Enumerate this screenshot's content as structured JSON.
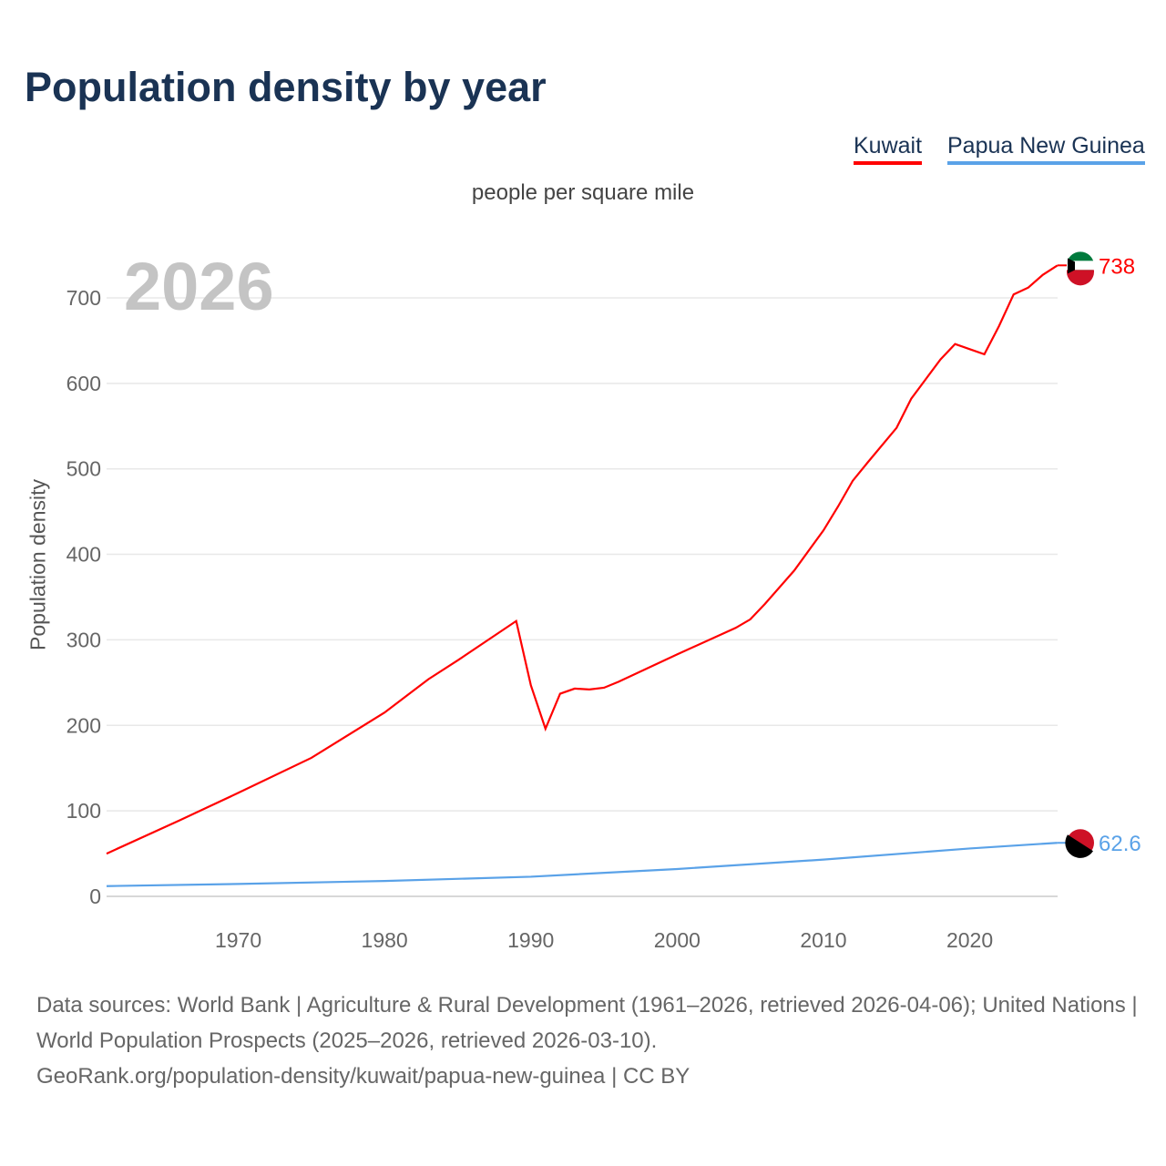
{
  "title": "Population density by year",
  "unit": "people per square mile",
  "year_label": "2026",
  "footer": {
    "line1": "Data sources: World Bank | Agriculture & Rural Development (1961–2026, retrieved 2026-04-06); United Nations | World Population Prospects (2025–2026, retrieved 2026-03-10).",
    "line2": "GeoRank.org/population-density/kuwait/papua-new-guinea | CC BY"
  },
  "chart_data": {
    "type": "line",
    "title": "Population density by year",
    "xlabel": "",
    "ylabel": "Population density",
    "xlim": [
      1961,
      2026
    ],
    "ylim": [
      0,
      750
    ],
    "xticks": [
      1970,
      1980,
      1990,
      2000,
      2010,
      2020
    ],
    "yticks": [
      0,
      100,
      200,
      300,
      400,
      500,
      600,
      700
    ],
    "legend": "top-right",
    "series": [
      {
        "name": "Kuwait",
        "color": "#ff0000",
        "end_label": "738",
        "x": [
          1961,
          1966,
          1970,
          1975,
          1980,
          1983,
          1985,
          1989,
          1990,
          1991,
          1992,
          1993,
          1994,
          1995,
          1996,
          2000,
          2004,
          2005,
          2006,
          2008,
          2010,
          2011,
          2012,
          2013,
          2015,
          2016,
          2017,
          2018,
          2019,
          2020,
          2021,
          2022,
          2023,
          2024,
          2025,
          2026
        ],
        "y": [
          50,
          89,
          121,
          162,
          215,
          254,
          276,
          322,
          247,
          196,
          237,
          243,
          242,
          244,
          251,
          283,
          314,
          324,
          342,
          381,
          428,
          456,
          486,
          507,
          548,
          582,
          605,
          628,
          646,
          640,
          634,
          667,
          704,
          712,
          727,
          738
        ]
      },
      {
        "name": "Papua New Guinea",
        "color": "#5aa2e8",
        "end_label": "62.6",
        "x": [
          1961,
          1970,
          1980,
          1990,
          2000,
          2010,
          2020,
          2026
        ],
        "y": [
          12,
          14.5,
          18,
          23,
          32,
          43,
          56,
          62.6
        ]
      }
    ]
  }
}
